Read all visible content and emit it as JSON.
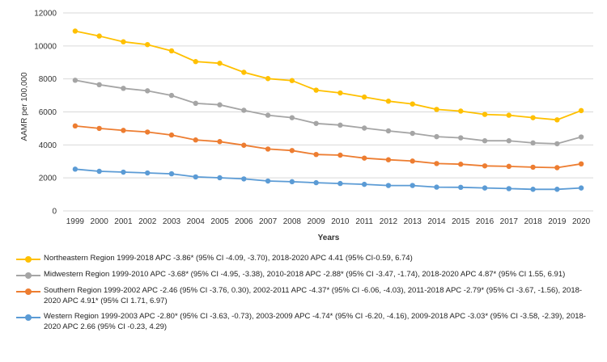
{
  "chart_data": {
    "type": "line",
    "title": "",
    "xlabel": "Years",
    "ylabel": "AAMR per 100,000",
    "ylim": [
      0,
      12000
    ],
    "yticks": [
      0,
      2000,
      4000,
      6000,
      8000,
      10000,
      12000
    ],
    "categories": [
      "1999",
      "2000",
      "2001",
      "2002",
      "2003",
      "2004",
      "2005",
      "2006",
      "2007",
      "2008",
      "2009",
      "2010",
      "2011",
      "2012",
      "2013",
      "2014",
      "2015",
      "2016",
      "2017",
      "2018",
      "2019",
      "2020"
    ],
    "grid": true,
    "legend_position": "bottom",
    "series": [
      {
        "name": "Northeastern",
        "color": "#FFC000",
        "legend": "Northeastern Region 1999-2018 APC -3.86* (95% CI -4.09, -3.70), 2018-2020 APC 4.41 (95% CI-0.59, 6.74)",
        "values": [
          10900,
          10600,
          10250,
          10080,
          9700,
          9050,
          8950,
          8400,
          8020,
          7900,
          7320,
          7150,
          6900,
          6650,
          6480,
          6150,
          6050,
          5850,
          5800,
          5650,
          5520,
          6080
        ]
      },
      {
        "name": "Midwestern",
        "color": "#A5A5A5",
        "legend": "Midwestern Region 1999-2010 APC -3.68* (95% CI -4.95, -3.38), 2010-2018 APC -2.88* (95% CI -3.47, -1.74), 2018-2020 APC 4.87* (95% CI 1.55, 6.91)",
        "values": [
          7920,
          7650,
          7430,
          7280,
          7000,
          6520,
          6430,
          6100,
          5800,
          5650,
          5300,
          5200,
          5020,
          4850,
          4700,
          4500,
          4430,
          4250,
          4250,
          4120,
          4070,
          4480
        ]
      },
      {
        "name": "Southern",
        "color": "#ED7D31",
        "legend": "Southern Region 1999-2002 APC -2.46 (95% CI -3.76, 0.30), 2002-2011 APC -4.37* (95% CI -6.06, -4.03), 2011-2018 APC -2.79* (95% CI -3.67, -1.56), 2018-2020 APC 4.91* (95% CI 1.71, 6.97)",
        "values": [
          5150,
          5000,
          4880,
          4780,
          4600,
          4300,
          4200,
          3980,
          3750,
          3660,
          3420,
          3380,
          3200,
          3100,
          3020,
          2870,
          2830,
          2730,
          2700,
          2650,
          2620,
          2850
        ]
      },
      {
        "name": "Western",
        "color": "#5B9BD5",
        "legend": "Western Region 1999-2003 APC -2.80* (95% CI -3.63, -0.73), 2003-2009 APC -4.74* (95% CI -6.20, -4.16), 2009-2018 APC -3.03* (95% CI -3.58, -2.39), 2018-2020 APC 2.66 (95% CI -0.23, 4.29)",
        "values": [
          2530,
          2400,
          2350,
          2300,
          2250,
          2060,
          2010,
          1940,
          1810,
          1770,
          1710,
          1660,
          1610,
          1540,
          1540,
          1440,
          1430,
          1390,
          1350,
          1310,
          1310,
          1390
        ]
      }
    ]
  }
}
